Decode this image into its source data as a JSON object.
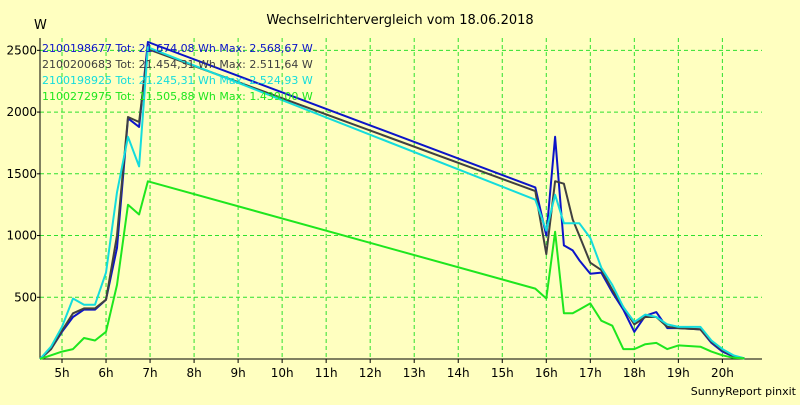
{
  "chart_data": {
    "type": "line",
    "title": "Wechselrichtervergleich vom 18.06.2018",
    "ylabel": "W",
    "xlabel": "",
    "footer": "SunnyReport pinxit",
    "ylim": [
      0,
      2600
    ],
    "xlim": [
      4.5,
      20.9
    ],
    "y_ticks": [
      500,
      1000,
      1500,
      2000,
      2500
    ],
    "x_ticks": [
      {
        "v": 5,
        "label": "5h"
      },
      {
        "v": 6,
        "label": "6h"
      },
      {
        "v": 7,
        "label": "7h"
      },
      {
        "v": 8,
        "label": "8h"
      },
      {
        "v": 9,
        "label": "9h"
      },
      {
        "v": 10,
        "label": "10h"
      },
      {
        "v": 11,
        "label": "11h"
      },
      {
        "v": 12,
        "label": "12h"
      },
      {
        "v": 13,
        "label": "13h"
      },
      {
        "v": 14,
        "label": "14h"
      },
      {
        "v": 15,
        "label": "15h"
      },
      {
        "v": 16,
        "label": "16h"
      },
      {
        "v": 17,
        "label": "17h"
      },
      {
        "v": 18,
        "label": "18h"
      },
      {
        "v": 19,
        "label": "19h"
      },
      {
        "v": 20,
        "label": "20h"
      }
    ],
    "grid": true,
    "legend_position": "top-left",
    "colors": {
      "background": "#ffffc0",
      "grid": "#2ee02e",
      "axis": "#000000",
      "text": "#000000"
    },
    "series": [
      {
        "name": "2100198677 Tot: 21.674,08 Wh Max: 2.568,67 W",
        "color": "#0c14c8",
        "points": [
          [
            4.5,
            0
          ],
          [
            4.75,
            80
          ],
          [
            5,
            220
          ],
          [
            5.25,
            340
          ],
          [
            5.5,
            400
          ],
          [
            5.75,
            400
          ],
          [
            6,
            480
          ],
          [
            6.25,
            900
          ],
          [
            6.5,
            1950
          ],
          [
            6.75,
            1880
          ],
          [
            6.95,
            2568
          ],
          [
            15.75,
            1390
          ],
          [
            16,
            1000
          ],
          [
            16.2,
            1800
          ],
          [
            16.4,
            920
          ],
          [
            16.6,
            880
          ],
          [
            16.75,
            800
          ],
          [
            17,
            690
          ],
          [
            17.25,
            700
          ],
          [
            17.5,
            540
          ],
          [
            17.75,
            400
          ],
          [
            18,
            220
          ],
          [
            18.25,
            350
          ],
          [
            18.5,
            380
          ],
          [
            18.75,
            250
          ],
          [
            19,
            250
          ],
          [
            19.5,
            240
          ],
          [
            19.75,
            130
          ],
          [
            20,
            60
          ],
          [
            20.25,
            20
          ],
          [
            20.5,
            5
          ]
        ]
      },
      {
        "name": "2100200683 Tot: 21.454,31 Wh Max: 2.511,64 W",
        "color": "#404040",
        "points": [
          [
            4.5,
            0
          ],
          [
            4.75,
            80
          ],
          [
            5,
            230
          ],
          [
            5.25,
            370
          ],
          [
            5.5,
            410
          ],
          [
            5.75,
            410
          ],
          [
            6,
            480
          ],
          [
            6.25,
            1000
          ],
          [
            6.5,
            1960
          ],
          [
            6.75,
            1920
          ],
          [
            6.95,
            2511
          ],
          [
            15.75,
            1360
          ],
          [
            16,
            850
          ],
          [
            16.2,
            1440
          ],
          [
            16.4,
            1420
          ],
          [
            16.6,
            1130
          ],
          [
            16.75,
            1000
          ],
          [
            17,
            780
          ],
          [
            17.25,
            720
          ],
          [
            17.5,
            560
          ],
          [
            17.75,
            420
          ],
          [
            18,
            280
          ],
          [
            18.25,
            340
          ],
          [
            18.5,
            340
          ],
          [
            18.75,
            260
          ],
          [
            19,
            250
          ],
          [
            19.5,
            240
          ],
          [
            19.75,
            140
          ],
          [
            20,
            70
          ],
          [
            20.25,
            25
          ],
          [
            20.5,
            5
          ]
        ]
      },
      {
        "name": "2100198925 Tot: 21.245,31 Wh Max: 2.524,93 W",
        "color": "#14dcdc",
        "points": [
          [
            4.5,
            0
          ],
          [
            4.75,
            100
          ],
          [
            5,
            260
          ],
          [
            5.25,
            490
          ],
          [
            5.5,
            440
          ],
          [
            5.75,
            440
          ],
          [
            6,
            700
          ],
          [
            6.25,
            1350
          ],
          [
            6.5,
            1800
          ],
          [
            6.75,
            1560
          ],
          [
            6.95,
            2525
          ],
          [
            15.75,
            1290
          ],
          [
            16,
            1040
          ],
          [
            16.2,
            1330
          ],
          [
            16.4,
            1100
          ],
          [
            16.6,
            1100
          ],
          [
            16.75,
            1100
          ],
          [
            17,
            980
          ],
          [
            17.25,
            740
          ],
          [
            17.5,
            600
          ],
          [
            17.75,
            420
          ],
          [
            18,
            300
          ],
          [
            18.25,
            360
          ],
          [
            18.5,
            340
          ],
          [
            18.75,
            280
          ],
          [
            19,
            260
          ],
          [
            19.5,
            260
          ],
          [
            19.75,
            150
          ],
          [
            20,
            80
          ],
          [
            20.25,
            30
          ],
          [
            20.5,
            5
          ]
        ]
      },
      {
        "name": "1100272975 Tot: 11.505,88 Wh Max: 1.439,00 W",
        "color": "#1ee61e",
        "points": [
          [
            4.5,
            0
          ],
          [
            4.75,
            30
          ],
          [
            5,
            60
          ],
          [
            5.25,
            80
          ],
          [
            5.5,
            170
          ],
          [
            5.75,
            150
          ],
          [
            6,
            220
          ],
          [
            6.25,
            600
          ],
          [
            6.5,
            1250
          ],
          [
            6.75,
            1170
          ],
          [
            6.95,
            1439
          ],
          [
            15.75,
            570
          ],
          [
            16,
            490
          ],
          [
            16.2,
            1030
          ],
          [
            16.4,
            370
          ],
          [
            16.6,
            370
          ],
          [
            16.75,
            400
          ],
          [
            17,
            450
          ],
          [
            17.25,
            310
          ],
          [
            17.5,
            270
          ],
          [
            17.75,
            80
          ],
          [
            18,
            80
          ],
          [
            18.25,
            120
          ],
          [
            18.5,
            130
          ],
          [
            18.75,
            80
          ],
          [
            19,
            110
          ],
          [
            19.5,
            100
          ],
          [
            19.75,
            60
          ],
          [
            20,
            30
          ],
          [
            20.25,
            10
          ],
          [
            20.5,
            5
          ]
        ]
      }
    ]
  }
}
